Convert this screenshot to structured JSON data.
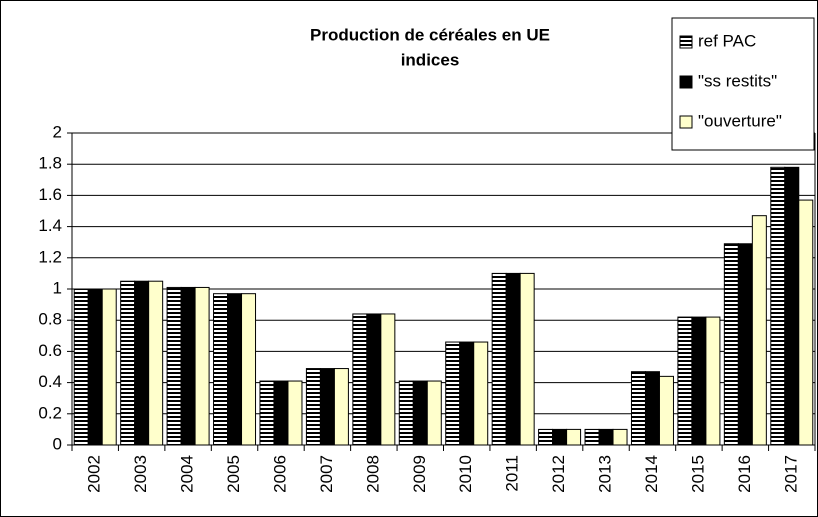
{
  "chart_data": {
    "type": "bar",
    "title": "Production de céréales en UE",
    "subtitle": "indices",
    "categories": [
      "2002",
      "2003",
      "2004",
      "2005",
      "2006",
      "2007",
      "2008",
      "2009",
      "2010",
      "2011",
      "2012",
      "2013",
      "2014",
      "2015",
      "2016",
      "2017"
    ],
    "series": [
      {
        "name": "ref PAC",
        "color": "#000000",
        "pattern": "horizontal-stripes",
        "values": [
          1,
          1.05,
          1.01,
          0.97,
          0.41,
          0.49,
          0.84,
          0.41,
          0.66,
          1.1,
          0.1,
          0.1,
          0.47,
          0.82,
          1.29,
          1.78
        ]
      },
      {
        "name": "\"ss restits\"",
        "color": "#000000",
        "values": [
          1,
          1.05,
          1.01,
          0.97,
          0.41,
          0.49,
          0.84,
          0.41,
          0.66,
          1.1,
          0.1,
          0.1,
          0.47,
          0.82,
          1.29,
          1.78
        ]
      },
      {
        "name": "\"ouverture\"",
        "color": "#ffffcc",
        "values": [
          1,
          1.05,
          1.01,
          0.97,
          0.41,
          0.49,
          0.84,
          0.41,
          0.66,
          1.1,
          0.1,
          0.1,
          0.44,
          0.82,
          1.47,
          1.57
        ]
      }
    ],
    "ylim": [
      0,
      2
    ],
    "yticks": [
      0,
      0.2,
      0.4,
      0.6,
      0.8,
      1,
      1.2,
      1.4,
      1.6,
      1.8,
      2
    ],
    "grid": true,
    "legend": "top-right"
  }
}
